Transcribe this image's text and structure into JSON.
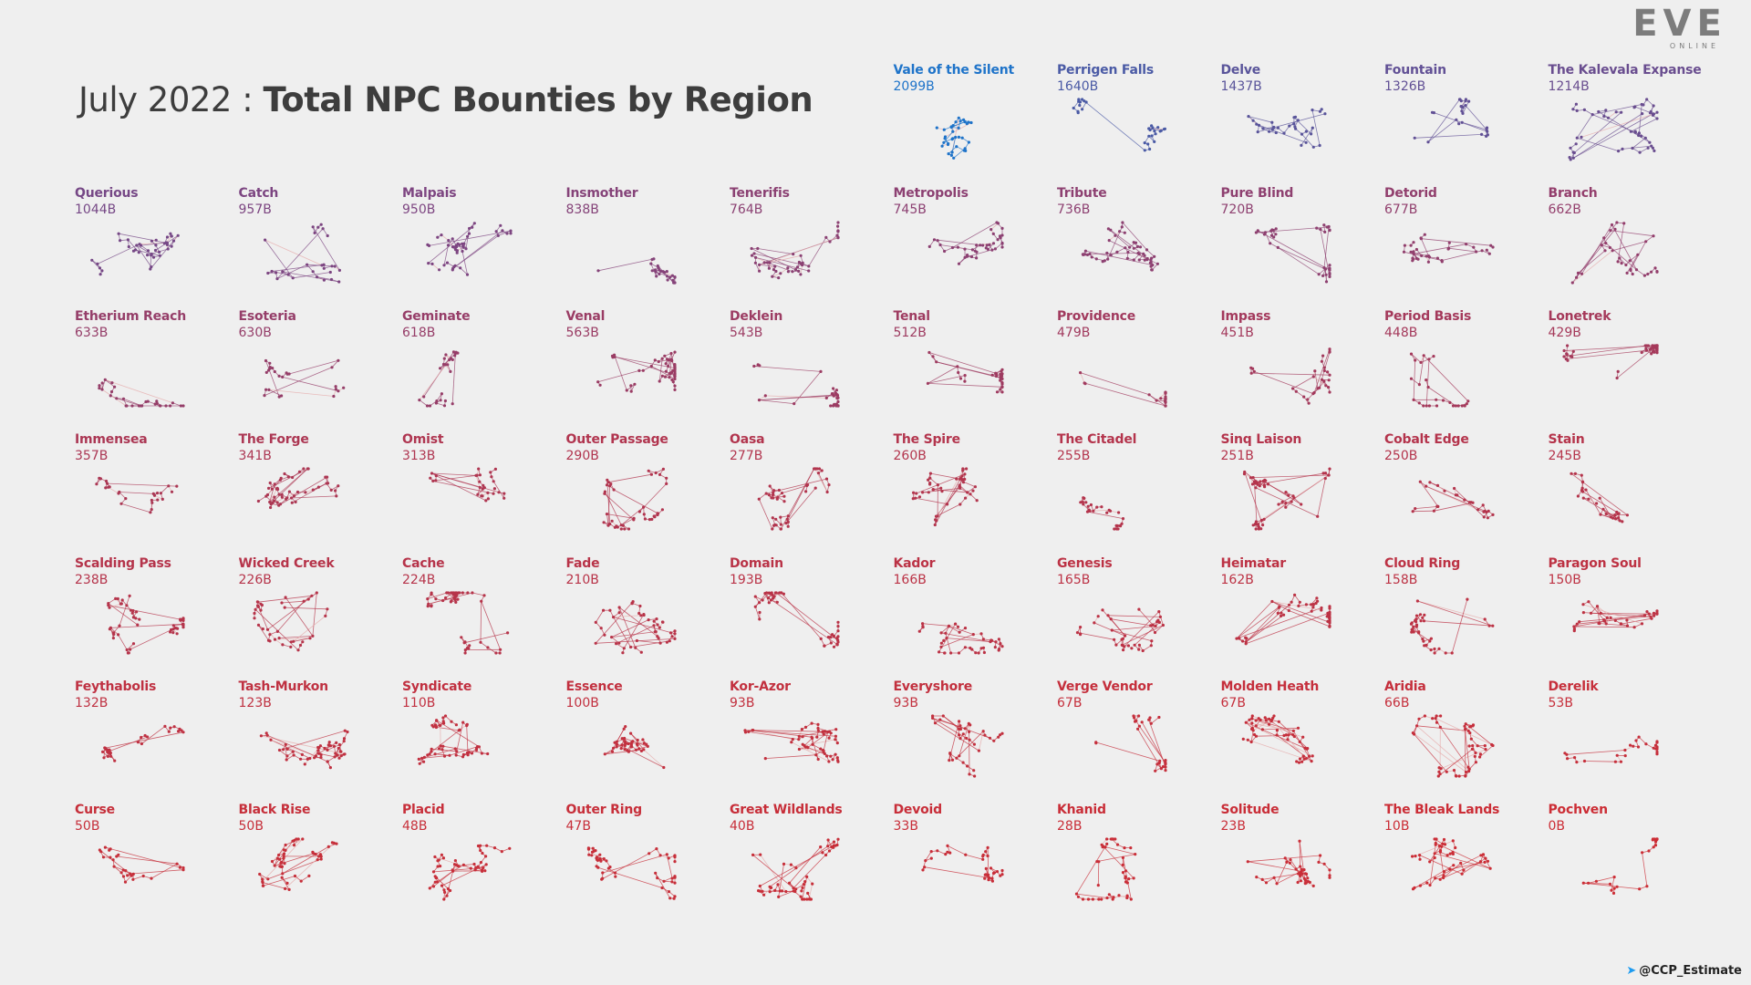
{
  "title": {
    "prefix": "July 2022 : ",
    "main": "Total NPC Bounties by Region"
  },
  "logo": {
    "word": "EVE",
    "sub": "ONLINE"
  },
  "credit": {
    "icon": "twitter-icon",
    "handle": "@CCP_Estimate"
  },
  "colors": {
    "top_region": "#1e73c9",
    "high": "#4a5aa5",
    "mid": "#7a4683",
    "low": "#cc2d35",
    "edge_light": "#e6aaaa"
  },
  "chart_data": {
    "type": "small-multiples",
    "title": "July 2022 : Total NPC Bounties by Region",
    "unit": "B",
    "regions": [
      {
        "name": "Vale of the Silent",
        "value": 2099,
        "label": "2099B"
      },
      {
        "name": "Perrigen Falls",
        "value": 1640,
        "label": "1640B"
      },
      {
        "name": "Delve",
        "value": 1437,
        "label": "1437B"
      },
      {
        "name": "Fountain",
        "value": 1326,
        "label": "1326B"
      },
      {
        "name": "The Kalevala Expanse",
        "value": 1214,
        "label": "1214B"
      },
      {
        "name": "Querious",
        "value": 1044,
        "label": "1044B"
      },
      {
        "name": "Catch",
        "value": 957,
        "label": "957B"
      },
      {
        "name": "Malpais",
        "value": 950,
        "label": "950B"
      },
      {
        "name": "Insmother",
        "value": 838,
        "label": "838B"
      },
      {
        "name": "Tenerifis",
        "value": 764,
        "label": "764B"
      },
      {
        "name": "Metropolis",
        "value": 745,
        "label": "745B"
      },
      {
        "name": "Tribute",
        "value": 736,
        "label": "736B"
      },
      {
        "name": "Pure Blind",
        "value": 720,
        "label": "720B"
      },
      {
        "name": "Detorid",
        "value": 677,
        "label": "677B"
      },
      {
        "name": "Branch",
        "value": 662,
        "label": "662B"
      },
      {
        "name": "Etherium Reach",
        "value": 633,
        "label": "633B"
      },
      {
        "name": "Esoteria",
        "value": 630,
        "label": "630B"
      },
      {
        "name": "Geminate",
        "value": 618,
        "label": "618B"
      },
      {
        "name": "Venal",
        "value": 563,
        "label": "563B"
      },
      {
        "name": "Deklein",
        "value": 543,
        "label": "543B"
      },
      {
        "name": "Tenal",
        "value": 512,
        "label": "512B"
      },
      {
        "name": "Providence",
        "value": 479,
        "label": "479B"
      },
      {
        "name": "Impass",
        "value": 451,
        "label": "451B"
      },
      {
        "name": "Period Basis",
        "value": 448,
        "label": "448B"
      },
      {
        "name": "Lonetrek",
        "value": 429,
        "label": "429B"
      },
      {
        "name": "Immensea",
        "value": 357,
        "label": "357B"
      },
      {
        "name": "The Forge",
        "value": 341,
        "label": "341B"
      },
      {
        "name": "Omist",
        "value": 313,
        "label": "313B"
      },
      {
        "name": "Outer Passage",
        "value": 290,
        "label": "290B"
      },
      {
        "name": "Oasa",
        "value": 277,
        "label": "277B"
      },
      {
        "name": "The Spire",
        "value": 260,
        "label": "260B"
      },
      {
        "name": "The Citadel",
        "value": 255,
        "label": "255B"
      },
      {
        "name": "Sinq Laison",
        "value": 251,
        "label": "251B"
      },
      {
        "name": "Cobalt Edge",
        "value": 250,
        "label": "250B"
      },
      {
        "name": "Stain",
        "value": 245,
        "label": "245B"
      },
      {
        "name": "Scalding Pass",
        "value": 238,
        "label": "238B"
      },
      {
        "name": "Wicked Creek",
        "value": 226,
        "label": "226B"
      },
      {
        "name": "Cache",
        "value": 224,
        "label": "224B"
      },
      {
        "name": "Fade",
        "value": 210,
        "label": "210B"
      },
      {
        "name": "Domain",
        "value": 193,
        "label": "193B"
      },
      {
        "name": "Kador",
        "value": 166,
        "label": "166B"
      },
      {
        "name": "Genesis",
        "value": 165,
        "label": "165B"
      },
      {
        "name": "Heimatar",
        "value": 162,
        "label": "162B"
      },
      {
        "name": "Cloud Ring",
        "value": 158,
        "label": "158B"
      },
      {
        "name": "Paragon Soul",
        "value": 150,
        "label": "150B"
      },
      {
        "name": "Feythabolis",
        "value": 132,
        "label": "132B"
      },
      {
        "name": "Tash-Murkon",
        "value": 123,
        "label": "123B"
      },
      {
        "name": "Syndicate",
        "value": 110,
        "label": "110B"
      },
      {
        "name": "Essence",
        "value": 100,
        "label": "100B"
      },
      {
        "name": "Kor-Azor",
        "value": 93,
        "label": "93B"
      },
      {
        "name": "Everyshore",
        "value": 93,
        "label": "93B"
      },
      {
        "name": "Verge Vendor",
        "value": 67,
        "label": "67B"
      },
      {
        "name": "Molden Heath",
        "value": 67,
        "label": "67B"
      },
      {
        "name": "Aridia",
        "value": 66,
        "label": "66B"
      },
      {
        "name": "Derelik",
        "value": 53,
        "label": "53B"
      },
      {
        "name": "Curse",
        "value": 50,
        "label": "50B"
      },
      {
        "name": "Black Rise",
        "value": 50,
        "label": "50B"
      },
      {
        "name": "Placid",
        "value": 48,
        "label": "48B"
      },
      {
        "name": "Outer Ring",
        "value": 47,
        "label": "47B"
      },
      {
        "name": "Great Wildlands",
        "value": 40,
        "label": "40B"
      },
      {
        "name": "Devoid",
        "value": 33,
        "label": "33B"
      },
      {
        "name": "Khanid",
        "value": 28,
        "label": "28B"
      },
      {
        "name": "Solitude",
        "value": 23,
        "label": "23B"
      },
      {
        "name": "The Bleak Lands",
        "value": 10,
        "label": "10B"
      },
      {
        "name": "Pochven",
        "value": 0,
        "label": "0B"
      }
    ]
  }
}
